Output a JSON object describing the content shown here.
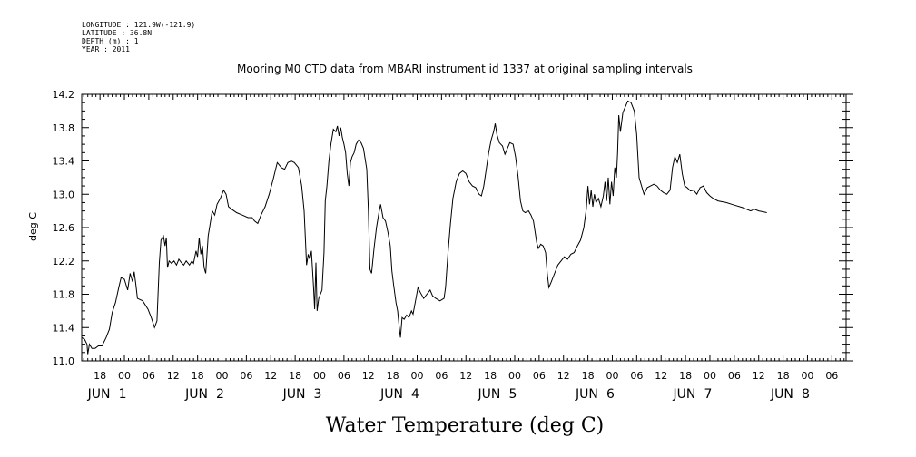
{
  "meta": {
    "longitude": "LONGITUDE : 121.9W(-121.9)",
    "latitude": "LATITUDE : 36.8N",
    "depth": "DEPTH (m) : 1",
    "year": "YEAR : 2011"
  },
  "chart_data": {
    "type": "line",
    "title": "Mooring M0 CTD data from MBARI instrument id 1337 at original sampling intervals",
    "xlabel": "Water Temperature (deg C)",
    "ylabel": "deg C",
    "xlim": [
      13.5,
      201.5
    ],
    "ylim": [
      11.0,
      14.2
    ],
    "x_units": "hours since 2011-06-01 00:00",
    "y_ticks": [
      "11.0",
      "11.4",
      "11.8",
      "12.2",
      "12.6",
      "13.0",
      "13.4",
      "13.8",
      "14.2"
    ],
    "hour_ticks": [
      {
        "x": 18,
        "label": "18"
      },
      {
        "x": 24,
        "label": "00"
      },
      {
        "x": 30,
        "label": "06"
      },
      {
        "x": 36,
        "label": "12"
      },
      {
        "x": 42,
        "label": "18"
      },
      {
        "x": 48,
        "label": "00"
      },
      {
        "x": 54,
        "label": "06"
      },
      {
        "x": 60,
        "label": "12"
      },
      {
        "x": 66,
        "label": "18"
      },
      {
        "x": 72,
        "label": "00"
      },
      {
        "x": 78,
        "label": "06"
      },
      {
        "x": 84,
        "label": "12"
      },
      {
        "x": 90,
        "label": "18"
      },
      {
        "x": 96,
        "label": "00"
      },
      {
        "x": 102,
        "label": "06"
      },
      {
        "x": 108,
        "label": "12"
      },
      {
        "x": 114,
        "label": "18"
      },
      {
        "x": 120,
        "label": "00"
      },
      {
        "x": 126,
        "label": "06"
      },
      {
        "x": 132,
        "label": "12"
      },
      {
        "x": 138,
        "label": "18"
      },
      {
        "x": 144,
        "label": "00"
      },
      {
        "x": 150,
        "label": "06"
      },
      {
        "x": 156,
        "label": "12"
      },
      {
        "x": 162,
        "label": "18"
      },
      {
        "x": 168,
        "label": "00"
      },
      {
        "x": 174,
        "label": "06"
      },
      {
        "x": 180,
        "label": "12"
      },
      {
        "x": 186,
        "label": "18"
      },
      {
        "x": 192,
        "label": "00"
      },
      {
        "x": 198,
        "label": "06"
      },
      {
        "x": 204,
        "label": "12"
      }
    ],
    "day_labels": [
      {
        "x": 24,
        "month": "JUN",
        "day": "1"
      },
      {
        "x": 48,
        "month": "JUN",
        "day": "2"
      },
      {
        "x": 72,
        "month": "JUN",
        "day": "3"
      },
      {
        "x": 96,
        "month": "JUN",
        "day": "4"
      },
      {
        "x": 120,
        "month": "JUN",
        "day": "5"
      },
      {
        "x": 144,
        "month": "JUN",
        "day": "6"
      },
      {
        "x": 168,
        "month": "JUN",
        "day": "7"
      },
      {
        "x": 192,
        "month": "JUN",
        "day": "8"
      }
    ],
    "series": [
      {
        "points": [
          [
            13.5,
            11.28
          ],
          [
            14.2,
            11.26
          ],
          [
            14.8,
            11.2
          ],
          [
            15.0,
            11.08
          ],
          [
            15.4,
            11.2
          ],
          [
            16.0,
            11.15
          ],
          [
            16.8,
            11.15
          ],
          [
            17.6,
            11.18
          ],
          [
            18.5,
            11.18
          ],
          [
            19.5,
            11.28
          ],
          [
            20.3,
            11.38
          ],
          [
            21.0,
            11.58
          ],
          [
            21.8,
            11.7
          ],
          [
            22.6,
            11.88
          ],
          [
            23.2,
            12.0
          ],
          [
            24.0,
            11.98
          ],
          [
            24.8,
            11.85
          ],
          [
            25.4,
            12.05
          ],
          [
            26.0,
            11.95
          ],
          [
            26.4,
            12.07
          ],
          [
            26.8,
            11.92
          ],
          [
            27.2,
            11.75
          ],
          [
            28.5,
            11.72
          ],
          [
            29.8,
            11.62
          ],
          [
            30.6,
            11.52
          ],
          [
            31.4,
            11.4
          ],
          [
            32.0,
            11.48
          ],
          [
            32.6,
            12.18
          ],
          [
            33.0,
            12.45
          ],
          [
            33.6,
            12.5
          ],
          [
            34.0,
            12.38
          ],
          [
            34.3,
            12.48
          ],
          [
            34.6,
            12.12
          ],
          [
            35.0,
            12.2
          ],
          [
            35.6,
            12.17
          ],
          [
            36.2,
            12.2
          ],
          [
            36.8,
            12.15
          ],
          [
            37.4,
            12.22
          ],
          [
            38.0,
            12.18
          ],
          [
            38.6,
            12.15
          ],
          [
            39.2,
            12.2
          ],
          [
            40.0,
            12.15
          ],
          [
            40.6,
            12.2
          ],
          [
            41.0,
            12.17
          ],
          [
            41.6,
            12.32
          ],
          [
            42.0,
            12.25
          ],
          [
            42.4,
            12.48
          ],
          [
            42.8,
            12.28
          ],
          [
            43.2,
            12.38
          ],
          [
            43.6,
            12.12
          ],
          [
            44.0,
            12.05
          ],
          [
            44.6,
            12.5
          ],
          [
            45.2,
            12.68
          ],
          [
            45.6,
            12.8
          ],
          [
            46.2,
            12.75
          ],
          [
            46.8,
            12.88
          ],
          [
            47.6,
            12.95
          ],
          [
            48.4,
            13.05
          ],
          [
            49.0,
            13.0
          ],
          [
            49.6,
            12.85
          ],
          [
            50.4,
            12.82
          ],
          [
            51.6,
            12.78
          ],
          [
            53.0,
            12.75
          ],
          [
            54.4,
            12.72
          ],
          [
            55.4,
            12.72
          ],
          [
            56.0,
            12.68
          ],
          [
            56.8,
            12.65
          ],
          [
            57.6,
            12.75
          ],
          [
            58.6,
            12.85
          ],
          [
            59.6,
            13.0
          ],
          [
            60.6,
            13.18
          ],
          [
            61.6,
            13.38
          ],
          [
            62.6,
            13.32
          ],
          [
            63.4,
            13.3
          ],
          [
            64.2,
            13.38
          ],
          [
            65.0,
            13.4
          ],
          [
            65.8,
            13.38
          ],
          [
            66.8,
            13.32
          ],
          [
            67.6,
            13.1
          ],
          [
            68.2,
            12.8
          ],
          [
            68.8,
            12.15
          ],
          [
            69.2,
            12.28
          ],
          [
            69.6,
            12.22
          ],
          [
            70.0,
            12.32
          ],
          [
            70.5,
            11.9
          ],
          [
            70.8,
            11.62
          ],
          [
            71.1,
            12.18
          ],
          [
            71.4,
            11.6
          ],
          [
            71.8,
            11.75
          ],
          [
            72.2,
            11.8
          ],
          [
            72.6,
            11.85
          ],
          [
            73.1,
            12.3
          ],
          [
            73.4,
            12.92
          ],
          [
            73.8,
            13.1
          ],
          [
            74.3,
            13.4
          ],
          [
            74.8,
            13.6
          ],
          [
            75.4,
            13.78
          ],
          [
            76.0,
            13.75
          ],
          [
            76.4,
            13.82
          ],
          [
            76.8,
            13.7
          ],
          [
            77.2,
            13.8
          ],
          [
            77.6,
            13.68
          ],
          [
            78.0,
            13.6
          ],
          [
            78.4,
            13.5
          ],
          [
            78.8,
            13.25
          ],
          [
            79.2,
            13.1
          ],
          [
            79.6,
            13.38
          ],
          [
            80.0,
            13.45
          ],
          [
            80.5,
            13.5
          ],
          [
            81.0,
            13.6
          ],
          [
            81.6,
            13.65
          ],
          [
            82.2,
            13.62
          ],
          [
            82.8,
            13.55
          ],
          [
            83.6,
            13.3
          ],
          [
            84.0,
            12.8
          ],
          [
            84.4,
            12.1
          ],
          [
            84.8,
            12.05
          ],
          [
            85.4,
            12.35
          ],
          [
            86.0,
            12.6
          ],
          [
            86.6,
            12.78
          ],
          [
            87.0,
            12.88
          ],
          [
            87.6,
            12.72
          ],
          [
            88.2,
            12.68
          ],
          [
            88.8,
            12.55
          ],
          [
            89.4,
            12.38
          ],
          [
            89.8,
            12.08
          ],
          [
            90.2,
            11.92
          ],
          [
            90.8,
            11.7
          ],
          [
            91.2,
            11.6
          ],
          [
            91.6,
            11.4
          ],
          [
            91.9,
            11.28
          ],
          [
            92.3,
            11.52
          ],
          [
            92.8,
            11.5
          ],
          [
            93.4,
            11.55
          ],
          [
            94.0,
            11.52
          ],
          [
            94.6,
            11.6
          ],
          [
            95.0,
            11.56
          ],
          [
            95.6,
            11.72
          ],
          [
            96.2,
            11.88
          ],
          [
            96.8,
            11.82
          ],
          [
            97.6,
            11.75
          ],
          [
            98.4,
            11.8
          ],
          [
            99.2,
            11.85
          ],
          [
            99.8,
            11.78
          ],
          [
            100.6,
            11.75
          ],
          [
            101.6,
            11.72
          ],
          [
            102.6,
            11.75
          ],
          [
            103.0,
            11.88
          ],
          [
            103.6,
            12.3
          ],
          [
            104.2,
            12.65
          ],
          [
            104.8,
            12.95
          ],
          [
            105.6,
            13.15
          ],
          [
            106.4,
            13.25
          ],
          [
            107.2,
            13.28
          ],
          [
            108.0,
            13.25
          ],
          [
            108.8,
            13.15
          ],
          [
            109.6,
            13.1
          ],
          [
            110.4,
            13.08
          ],
          [
            111.2,
            13.0
          ],
          [
            111.8,
            12.98
          ],
          [
            112.4,
            13.1
          ],
          [
            113.0,
            13.3
          ],
          [
            113.6,
            13.5
          ],
          [
            114.2,
            13.65
          ],
          [
            114.8,
            13.75
          ],
          [
            115.2,
            13.85
          ],
          [
            115.6,
            13.72
          ],
          [
            116.2,
            13.62
          ],
          [
            117.0,
            13.58
          ],
          [
            117.6,
            13.48
          ],
          [
            118.2,
            13.55
          ],
          [
            118.8,
            13.62
          ],
          [
            119.6,
            13.6
          ],
          [
            120.2,
            13.45
          ],
          [
            120.8,
            13.22
          ],
          [
            121.4,
            12.92
          ],
          [
            122.0,
            12.8
          ],
          [
            122.6,
            12.78
          ],
          [
            123.4,
            12.8
          ],
          [
            124.0,
            12.75
          ],
          [
            124.6,
            12.68
          ],
          [
            125.0,
            12.55
          ],
          [
            125.4,
            12.42
          ],
          [
            125.8,
            12.35
          ],
          [
            126.4,
            12.4
          ],
          [
            127.0,
            12.38
          ],
          [
            127.6,
            12.3
          ],
          [
            128.0,
            12.05
          ],
          [
            128.4,
            11.88
          ],
          [
            129.0,
            11.95
          ],
          [
            129.8,
            12.05
          ],
          [
            130.6,
            12.15
          ],
          [
            131.4,
            12.2
          ],
          [
            132.2,
            12.25
          ],
          [
            133.0,
            12.22
          ],
          [
            133.8,
            12.28
          ],
          [
            134.6,
            12.3
          ],
          [
            135.4,
            12.38
          ],
          [
            136.2,
            12.45
          ],
          [
            137.0,
            12.6
          ],
          [
            137.6,
            12.82
          ],
          [
            138.0,
            13.1
          ],
          [
            138.4,
            12.88
          ],
          [
            138.8,
            13.05
          ],
          [
            139.2,
            12.85
          ],
          [
            139.6,
            13.0
          ],
          [
            140.0,
            12.9
          ],
          [
            140.6,
            12.95
          ],
          [
            141.2,
            12.85
          ],
          [
            141.8,
            12.98
          ],
          [
            142.2,
            13.15
          ],
          [
            142.6,
            12.92
          ],
          [
            143.0,
            13.2
          ],
          [
            143.4,
            12.88
          ],
          [
            143.8,
            13.15
          ],
          [
            144.2,
            12.98
          ],
          [
            144.6,
            13.32
          ],
          [
            145.0,
            13.2
          ],
          [
            145.3,
            13.5
          ],
          [
            145.6,
            13.95
          ],
          [
            146.0,
            13.75
          ],
          [
            146.6,
            13.98
          ],
          [
            147.2,
            14.05
          ],
          [
            147.8,
            14.12
          ],
          [
            148.6,
            14.1
          ],
          [
            149.4,
            14.0
          ],
          [
            150.0,
            13.72
          ],
          [
            150.6,
            13.2
          ],
          [
            151.2,
            13.1
          ],
          [
            151.8,
            13.0
          ],
          [
            152.6,
            13.08
          ],
          [
            153.4,
            13.1
          ],
          [
            154.2,
            13.12
          ],
          [
            155.0,
            13.1
          ],
          [
            155.8,
            13.05
          ],
          [
            156.6,
            13.02
          ],
          [
            157.4,
            13.0
          ],
          [
            158.2,
            13.05
          ],
          [
            158.8,
            13.32
          ],
          [
            159.4,
            13.45
          ],
          [
            160.0,
            13.38
          ],
          [
            160.6,
            13.48
          ],
          [
            161.2,
            13.25
          ],
          [
            161.8,
            13.1
          ],
          [
            162.4,
            13.08
          ],
          [
            163.2,
            13.04
          ],
          [
            164.0,
            13.05
          ],
          [
            164.8,
            13.0
          ],
          [
            165.6,
            13.08
          ],
          [
            166.4,
            13.1
          ],
          [
            167.2,
            13.02
          ],
          [
            168.0,
            12.98
          ],
          [
            168.8,
            12.95
          ],
          [
            170.0,
            12.92
          ],
          [
            172.0,
            12.9
          ],
          [
            174.0,
            12.87
          ],
          [
            176.0,
            12.84
          ],
          [
            178.0,
            12.8
          ],
          [
            179.0,
            12.82
          ],
          [
            180.0,
            12.8
          ],
          [
            181.0,
            12.79
          ],
          [
            182.0,
            12.78
          ]
        ]
      }
    ]
  }
}
